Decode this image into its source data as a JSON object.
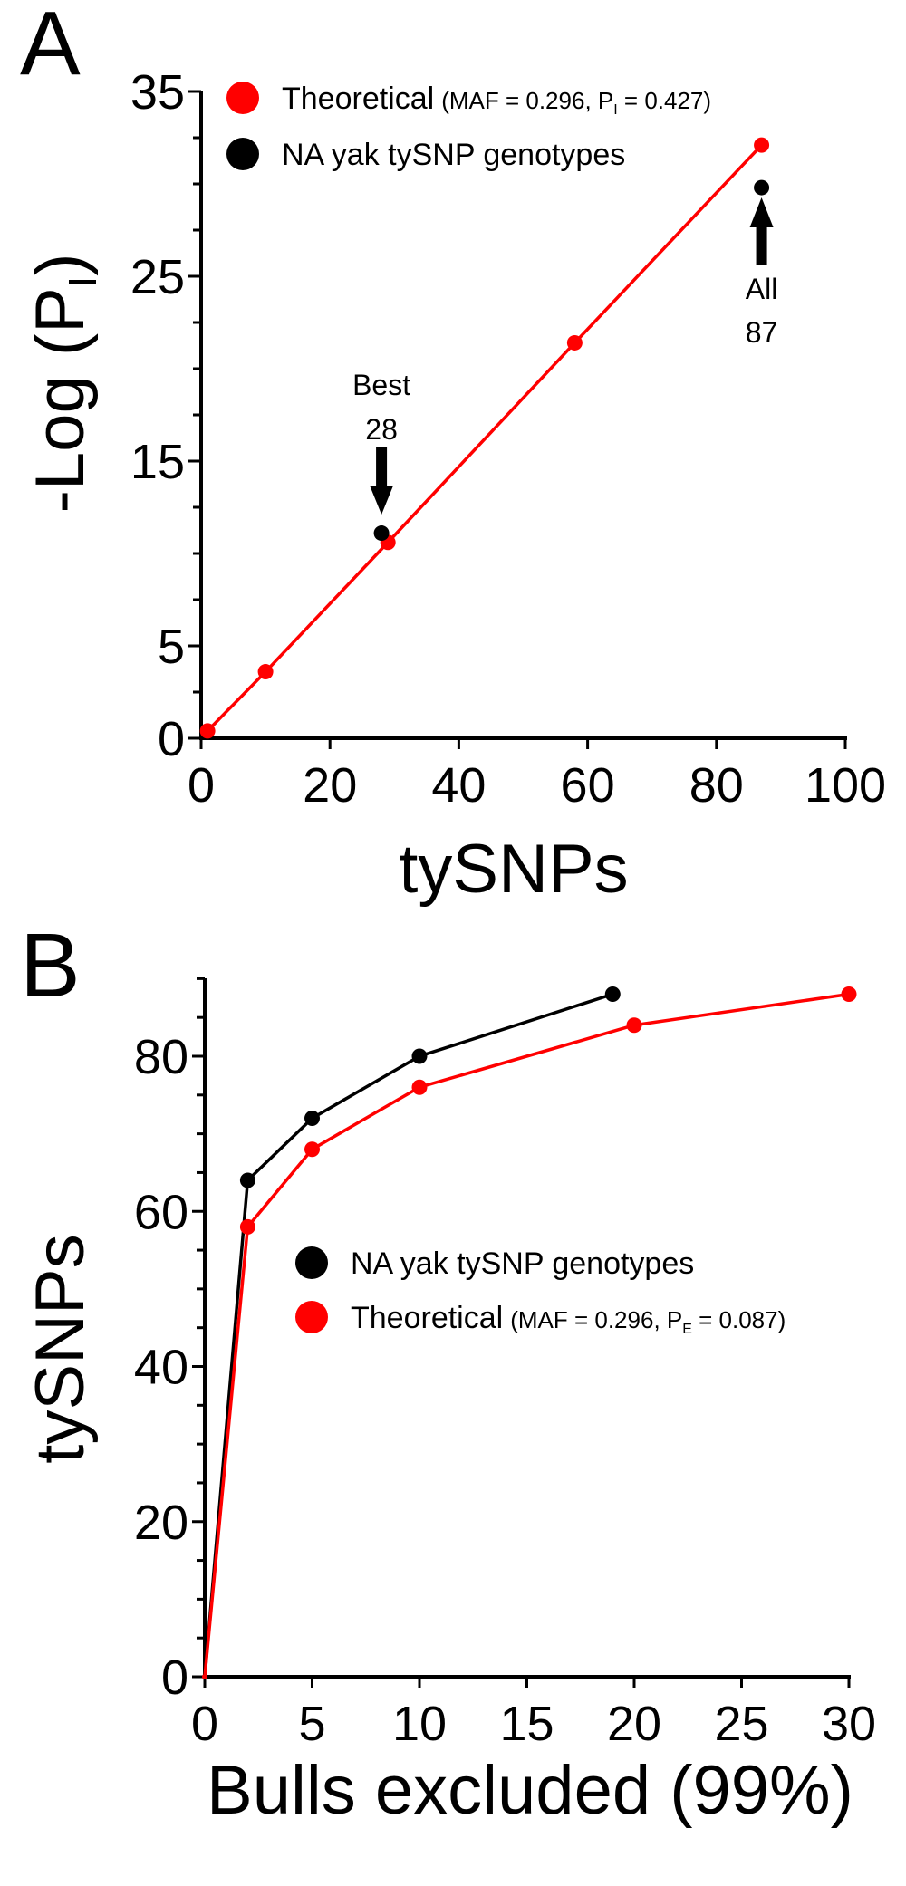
{
  "colors": {
    "theoretical": "#ff0000",
    "observed": "#000000",
    "axis": "#000000"
  },
  "chart_data": [
    {
      "panel_label": "A",
      "type": "line",
      "title": "",
      "xlabel": "tySNPs",
      "ylabel_main": "-Log (P",
      "ylabel_sub": "I",
      "ylabel_end": ")",
      "xlim": [
        0,
        100
      ],
      "ylim": [
        0,
        35
      ],
      "xticks": [
        "0",
        "20",
        "40",
        "60",
        "80",
        "100"
      ],
      "yticks": [
        "0",
        "5",
        "15",
        "25",
        "35"
      ],
      "legend_position": "top-left",
      "series": [
        {
          "name": "Theoretical",
          "legend_note": "(MAF = 0.296, P",
          "legend_sub": "I",
          "legend_note_end": " = 0.427)",
          "color": "#ff0000",
          "line": true,
          "x": [
            1,
            10,
            29,
            58,
            87
          ],
          "y": [
            0.4,
            3.6,
            10.6,
            21.4,
            32.1
          ]
        },
        {
          "name": "NA yak tySNP genotypes",
          "color": "#000000",
          "line": false,
          "x": [
            28,
            87
          ],
          "y": [
            11.1,
            29.8
          ]
        }
      ],
      "annotations": [
        {
          "line1": "Best",
          "line2": "28",
          "x": 28,
          "direction": "down"
        },
        {
          "line1": "All",
          "line2": "87",
          "x": 87,
          "direction": "up"
        }
      ]
    },
    {
      "panel_label": "B",
      "type": "line",
      "title": "",
      "xlabel": "Bulls excluded (99%)",
      "ylabel": "tySNPs",
      "xlim": [
        0,
        30
      ],
      "ylim": [
        0,
        90
      ],
      "xticks": [
        "0",
        "5",
        "10",
        "15",
        "20",
        "25",
        "30"
      ],
      "yticks": [
        "0",
        "20",
        "40",
        "60",
        "80"
      ],
      "legend_position": "center-right",
      "series": [
        {
          "name": "NA yak tySNP genotypes",
          "color": "#000000",
          "line": true,
          "x": [
            0,
            2,
            5,
            10,
            19
          ],
          "y": [
            0,
            64,
            72,
            80,
            88
          ]
        },
        {
          "name": "Theoretical",
          "legend_note": "(MAF = 0.296, P",
          "legend_sub": "E",
          "legend_note_end": " = 0.087)",
          "color": "#ff0000",
          "line": true,
          "x": [
            0,
            2,
            5,
            10,
            20,
            30
          ],
          "y": [
            0,
            58,
            68,
            76,
            84,
            88
          ]
        }
      ]
    }
  ]
}
